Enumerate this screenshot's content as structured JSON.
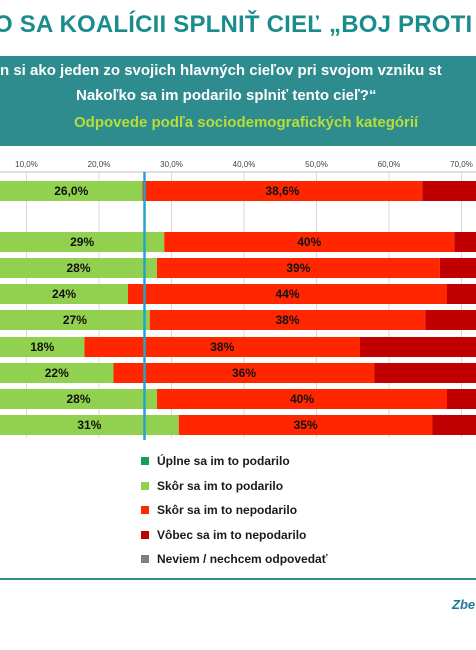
{
  "title": "O SA KOALÍCII SPLNIŤ CIEĽ „BOJ PROTI KO",
  "question": {
    "line1": "n si ako jeden zo svojich hlavných cieľov pri svojom vzniku st",
    "line2": "Nakoľko sa im podarilo splniť tento cieľ?“",
    "subtitle": "Odpovede podľa sociodemografických kategórií"
  },
  "footer": {
    "text": "Zbe"
  },
  "colors": {
    "teal": "#2e8b8e",
    "fully": "#13a05a",
    "rather_yes": "#92d050",
    "rather_no": "#ff2600",
    "not_at_all": "#c00000",
    "dont_know": "#808080",
    "marker": "#2aa3c9"
  },
  "chart_data": {
    "type": "bar",
    "orientation": "horizontal",
    "stacked": true,
    "xlim": [
      0,
      70
    ],
    "ticks": [
      "10,0%",
      "20,0%",
      "30,0%",
      "40,0%",
      "50,0%",
      "60,0%",
      "70,0%"
    ],
    "grid": true,
    "legend_position": "bottom",
    "categories": [
      "",
      "",
      "",
      "",
      "",
      "",
      "",
      "",
      ""
    ],
    "series": [
      {
        "name": "Úplne sa im to podarilo",
        "values": [
          0,
          0,
          0,
          0,
          0,
          0,
          0,
          0,
          0
        ]
      },
      {
        "name": "Skôr sa im to podarilo",
        "values": [
          26.0,
          29,
          28,
          24,
          27,
          18,
          22,
          28,
          31
        ],
        "labels": [
          "26,0%",
          "29%",
          "28%",
          "24%",
          "27%",
          "18%",
          "22%",
          "28%",
          "31%"
        ]
      },
      {
        "name": "Skôr sa im to nepodarilo",
        "values": [
          38.6,
          40,
          39,
          44,
          38,
          38,
          36,
          40,
          35
        ],
        "labels": [
          "38,6%",
          "40%",
          "39%",
          "44%",
          "38%",
          "38%",
          "36%",
          "40%",
          "35%"
        ]
      },
      {
        "name": "Vôbec sa im to nepodarilo",
        "values": [
          null,
          null,
          null,
          null,
          null,
          null,
          null,
          null,
          null
        ]
      },
      {
        "name": "Neviem / nechcem odpovedať",
        "values": [
          null,
          null,
          null,
          null,
          null,
          null,
          null,
          null,
          null
        ]
      }
    ],
    "reference_value": 26.0
  }
}
